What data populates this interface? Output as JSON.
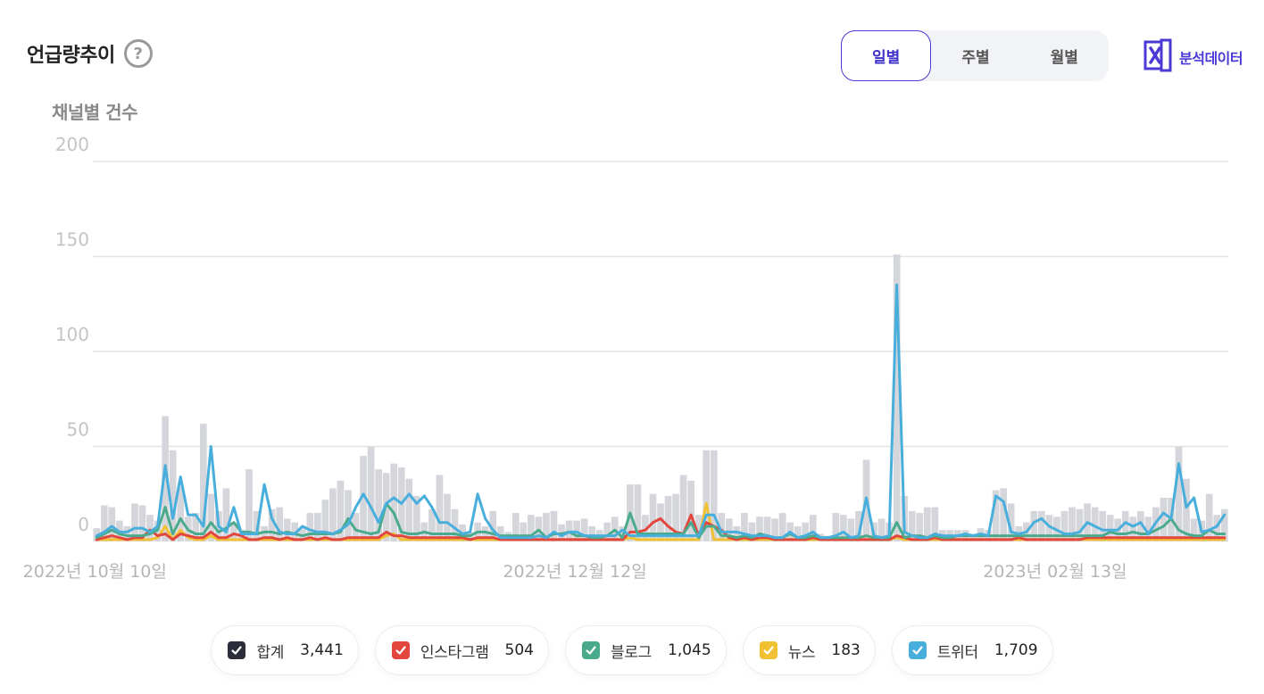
{
  "header": {
    "title": "언급량추이",
    "help_glyph": "?",
    "subtitle": "채널별 건수",
    "export_label": "분석데이터"
  },
  "period_tabs": [
    {
      "label": "일별",
      "active": true
    },
    {
      "label": "주별",
      "active": false
    },
    {
      "label": "월별",
      "active": false
    }
  ],
  "legend": [
    {
      "label": "합계",
      "count": "3,441",
      "color": "#2b2d3a"
    },
    {
      "label": "인스타그램",
      "count": "504",
      "color": "#e2463d"
    },
    {
      "label": "블로그",
      "count": "1,045",
      "color": "#4aab8c"
    },
    {
      "label": "뉴스",
      "count": "183",
      "color": "#f2c033"
    },
    {
      "label": "트위터",
      "count": "1,709",
      "color": "#48aedb"
    }
  ],
  "chart_data": {
    "type": "line",
    "x_tick_labels": [
      "2022년 10월 10일",
      "2022년 12월 12일",
      "2023년 02월 13일"
    ],
    "y_ticks": [
      0,
      50,
      100,
      150,
      200
    ],
    "ylim": [
      0,
      200
    ],
    "grid": true,
    "bar_series": {
      "name": "합계",
      "color": "#d5d6db",
      "values": [
        7,
        19,
        18,
        11,
        8,
        20,
        19,
        14,
        11,
        66,
        48,
        29,
        13,
        15,
        62,
        25,
        16,
        28,
        10,
        6,
        38,
        16,
        8,
        17,
        18,
        12,
        10,
        7,
        15,
        15,
        22,
        28,
        32,
        27,
        15,
        45,
        50,
        38,
        36,
        41,
        39,
        33,
        24,
        10,
        17,
        35,
        25,
        17,
        9,
        5,
        10,
        8,
        16,
        8,
        5,
        15,
        10,
        14,
        13,
        15,
        16,
        9,
        11,
        11,
        12,
        8,
        6,
        10,
        13,
        8,
        30,
        30,
        14,
        25,
        20,
        24,
        25,
        35,
        32,
        14,
        48,
        48,
        15,
        12,
        8,
        15,
        10,
        13,
        13,
        12,
        15,
        10,
        8,
        10,
        14,
        4,
        3,
        15,
        14,
        12,
        16,
        43,
        10,
        12,
        10,
        151,
        24,
        16,
        15,
        18,
        18,
        6,
        6,
        6,
        6,
        4,
        7,
        6,
        27,
        28,
        20,
        8,
        10,
        16,
        16,
        14,
        13,
        16,
        18,
        17,
        20,
        18,
        16,
        14,
        12,
        16,
        13,
        16,
        13,
        18,
        23,
        23,
        50,
        33,
        12,
        11,
        25,
        14,
        17
      ]
    },
    "series": [
      {
        "name": "트위터",
        "color": "#48aedb",
        "values": [
          3,
          5,
          8,
          5,
          5,
          7,
          7,
          5,
          8,
          40,
          12,
          34,
          14,
          14,
          8,
          50,
          8,
          5,
          18,
          4,
          4,
          4,
          30,
          12,
          5,
          4,
          4,
          8,
          6,
          5,
          5,
          4,
          6,
          9,
          18,
          25,
          18,
          10,
          20,
          23,
          20,
          25,
          20,
          24,
          18,
          10,
          10,
          7,
          4,
          5,
          25,
          12,
          6,
          2,
          2,
          2,
          2,
          2,
          3,
          2,
          5,
          3,
          5,
          5,
          3,
          3,
          3,
          3,
          3,
          6,
          3,
          3,
          3,
          3,
          3,
          3,
          3,
          3,
          3,
          3,
          14,
          14,
          5,
          5,
          5,
          4,
          3,
          3,
          3,
          2,
          2,
          5,
          2,
          3,
          5,
          2,
          2,
          3,
          5,
          2,
          3,
          23,
          3,
          2,
          3,
          135,
          5,
          3,
          2,
          2,
          4,
          3,
          3,
          3,
          4,
          3,
          4,
          3,
          24,
          21,
          5,
          4,
          5,
          10,
          12,
          8,
          6,
          4,
          4,
          5,
          10,
          8,
          6,
          6,
          6,
          10,
          8,
          10,
          4,
          10,
          15,
          12,
          41,
          18,
          23,
          5,
          6,
          8,
          14
        ]
      },
      {
        "name": "블로그",
        "color": "#4aab8c",
        "values": [
          2,
          4,
          6,
          4,
          3,
          3,
          3,
          4,
          6,
          18,
          4,
          12,
          6,
          4,
          4,
          10,
          5,
          7,
          10,
          5,
          5,
          4,
          5,
          5,
          4,
          5,
          4,
          3,
          4,
          4,
          4,
          4,
          5,
          12,
          6,
          5,
          4,
          5,
          20,
          15,
          5,
          4,
          4,
          5,
          4,
          4,
          4,
          4,
          3,
          3,
          5,
          5,
          4,
          3,
          3,
          3,
          3,
          3,
          6,
          2,
          4,
          4,
          5,
          3,
          3,
          2,
          2,
          3,
          6,
          2,
          15,
          4,
          4,
          4,
          4,
          4,
          4,
          4,
          10,
          2,
          8,
          8,
          3,
          3,
          2,
          3,
          2,
          4,
          3,
          2,
          2,
          4,
          2,
          2,
          3,
          2,
          2,
          2,
          2,
          2,
          2,
          3,
          2,
          2,
          2,
          10,
          2,
          3,
          3,
          2,
          3,
          2,
          2,
          3,
          3,
          3,
          3,
          3,
          3,
          3,
          3,
          3,
          3,
          3,
          3,
          3,
          3,
          3,
          3,
          3,
          3,
          3,
          3,
          5,
          4,
          4,
          5,
          4,
          4,
          6,
          8,
          12,
          6,
          4,
          3,
          3,
          6,
          4,
          4
        ]
      },
      {
        "name": "인스타그램",
        "color": "#e2463d",
        "values": [
          1,
          2,
          3,
          2,
          1,
          2,
          2,
          6,
          3,
          4,
          1,
          4,
          3,
          2,
          2,
          5,
          2,
          2,
          4,
          3,
          1,
          1,
          2,
          2,
          1,
          2,
          1,
          1,
          2,
          1,
          2,
          1,
          1,
          2,
          2,
          2,
          2,
          2,
          5,
          3,
          3,
          2,
          2,
          2,
          2,
          2,
          2,
          2,
          2,
          1,
          2,
          2,
          2,
          1,
          1,
          1,
          1,
          1,
          1,
          1,
          1,
          1,
          1,
          1,
          1,
          1,
          1,
          1,
          1,
          1,
          5,
          5,
          6,
          10,
          12,
          8,
          5,
          4,
          14,
          3,
          10,
          8,
          6,
          2,
          1,
          2,
          1,
          2,
          2,
          1,
          1,
          1,
          1,
          1,
          2,
          1,
          1,
          1,
          1,
          1,
          1,
          1,
          1,
          1,
          1,
          3,
          2,
          1,
          1,
          1,
          2,
          1,
          1,
          1,
          1,
          1,
          1,
          1,
          1,
          1,
          1,
          2,
          1,
          1,
          1,
          1,
          1,
          1,
          1,
          1,
          2,
          2,
          2,
          2,
          2,
          2,
          2,
          2,
          2,
          2,
          2,
          2,
          2,
          2,
          2,
          2,
          2,
          2,
          2
        ]
      },
      {
        "name": "뉴스",
        "color": "#f2c033",
        "values": [
          1,
          1,
          1,
          1,
          1,
          1,
          1,
          1,
          2,
          8,
          1,
          6,
          2,
          1,
          1,
          3,
          1,
          1,
          1,
          1,
          1,
          1,
          1,
          1,
          1,
          1,
          1,
          1,
          1,
          1,
          1,
          1,
          1,
          1,
          1,
          1,
          1,
          1,
          3,
          4,
          1,
          1,
          1,
          1,
          1,
          1,
          1,
          1,
          1,
          1,
          1,
          1,
          1,
          1,
          1,
          1,
          1,
          1,
          1,
          1,
          1,
          1,
          1,
          1,
          1,
          1,
          1,
          1,
          1,
          1,
          2,
          1,
          1,
          1,
          1,
          1,
          1,
          1,
          1,
          1,
          20,
          1,
          1,
          1,
          1,
          1,
          1,
          1,
          1,
          1,
          1,
          1,
          1,
          1,
          1,
          1,
          1,
          1,
          1,
          1,
          1,
          1,
          1,
          1,
          1,
          2,
          1,
          1,
          1,
          1,
          1,
          1,
          1,
          1,
          1,
          1,
          1,
          1,
          1,
          1,
          1,
          1,
          1,
          1,
          1,
          1,
          1,
          1,
          1,
          1,
          1,
          1,
          1,
          1,
          1,
          1,
          1,
          1,
          1,
          1,
          1,
          1,
          1,
          1,
          1,
          1,
          1,
          1,
          1
        ]
      }
    ]
  }
}
